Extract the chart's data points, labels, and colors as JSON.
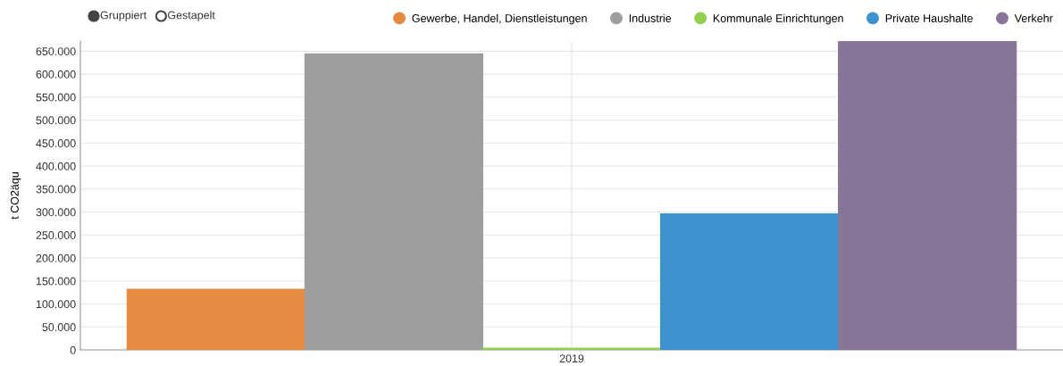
{
  "chart_data": {
    "type": "bar",
    "ylabel": "t CO2äqu",
    "categories": [
      "2019"
    ],
    "series": [
      {
        "name": "Gewerbe, Handel, Dienstleistungen",
        "color": "#e68a42",
        "values": [
          132000
        ]
      },
      {
        "name": "Industrie",
        "color": "#9e9e9e",
        "values": [
          644000
        ]
      },
      {
        "name": "Kommunale Einrichtungen",
        "color": "#8fd14f",
        "values": [
          4000
        ]
      },
      {
        "name": "Private Haushalte",
        "color": "#3f92d0",
        "values": [
          296000
        ]
      },
      {
        "name": "Verkehr",
        "color": "#877698",
        "values": [
          671000
        ]
      }
    ],
    "ylim": [
      0,
      672000
    ],
    "yticks": [
      0,
      {
        "value": 50000,
        "label": "50.000"
      },
      {
        "value": 100000,
        "label": "100.000"
      },
      {
        "value": 150000,
        "label": "150.000"
      },
      {
        "value": 200000,
        "label": "200.000"
      },
      {
        "value": 250000,
        "label": "250.000"
      },
      {
        "value": 300000,
        "label": "300.000"
      },
      {
        "value": 350000,
        "label": "350.000"
      },
      {
        "value": 400000,
        "label": "400.000"
      },
      {
        "value": 450000,
        "label": "450.000"
      },
      {
        "value": 500000,
        "label": "500.000"
      },
      {
        "value": 550000,
        "label": "550.000"
      },
      {
        "value": 600000,
        "label": "600.000"
      },
      {
        "value": 650000,
        "label": "650.000"
      }
    ],
    "grid": true,
    "legend": "top right",
    "annotations": [
      "Gruppiert",
      "Gestapelt"
    ]
  }
}
